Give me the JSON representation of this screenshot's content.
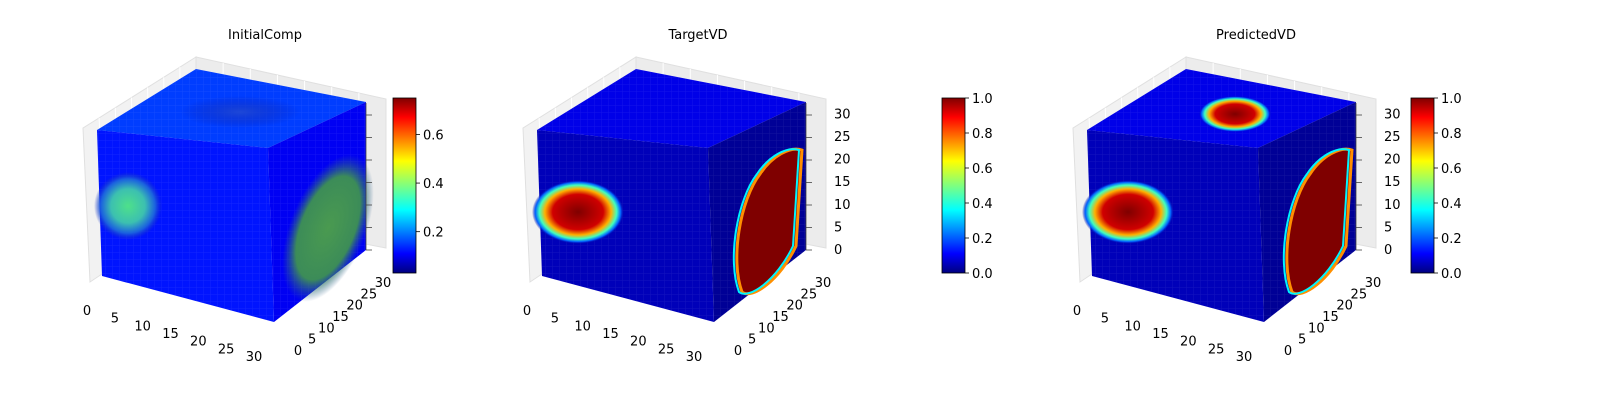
{
  "chart_data": [
    {
      "type": "heatmap",
      "subtype": "3d-voxel-cube",
      "title": "InitialComp",
      "colormap": "jet",
      "x_ticks": [
        0,
        5,
        10,
        15,
        20,
        25,
        30
      ],
      "y_ticks": [
        0,
        5,
        10,
        15,
        20,
        25,
        30
      ],
      "z_ticks": [],
      "colorbar": {
        "ticks": [
          0.2,
          0.4,
          0.6
        ],
        "range": [
          0.03,
          0.75
        ]
      },
      "base_value": 0.13,
      "features": [
        {
          "face": "front",
          "value": 0.45,
          "desc": "round blob"
        },
        {
          "face": "side",
          "value": 0.45,
          "desc": "large oval"
        },
        {
          "face": "top",
          "value": 0.18,
          "desc": "faint patch"
        }
      ]
    },
    {
      "type": "heatmap",
      "subtype": "3d-voxel-cube",
      "title": "TargetVD",
      "colormap": "jet",
      "x_ticks": [
        0,
        5,
        10,
        15,
        20,
        25,
        30
      ],
      "y_ticks": [
        0,
        5,
        10,
        15,
        20,
        25,
        30
      ],
      "z_ticks": [
        0,
        5,
        10,
        15,
        20,
        25,
        30
      ],
      "colorbar": {
        "ticks": [
          0.0,
          0.2,
          0.4,
          0.6,
          0.8,
          1.0
        ],
        "range": [
          0,
          1
        ]
      },
      "base_value": 0.05,
      "features": [
        {
          "face": "front",
          "value": 1.0,
          "desc": "oval inclusion"
        },
        {
          "face": "side",
          "value": 1.0,
          "desc": "large disc"
        }
      ]
    },
    {
      "type": "heatmap",
      "subtype": "3d-voxel-cube",
      "title": "PredictedVD",
      "colormap": "jet",
      "x_ticks": [
        0,
        5,
        10,
        15,
        20,
        25,
        30
      ],
      "y_ticks": [
        0,
        5,
        10,
        15,
        20,
        25,
        30
      ],
      "z_ticks": [
        0,
        5,
        10,
        15,
        20,
        25,
        30
      ],
      "colorbar": {
        "ticks": [
          0.0,
          0.2,
          0.4,
          0.6,
          0.8,
          1.0
        ],
        "range": [
          0,
          1
        ]
      },
      "base_value": 0.05,
      "features": [
        {
          "face": "front",
          "value": 1.0,
          "desc": "oval inclusion"
        },
        {
          "face": "side",
          "value": 1.0,
          "desc": "large disc"
        },
        {
          "face": "top",
          "value": 1.0,
          "desc": "small hexagonal blob"
        }
      ]
    }
  ]
}
